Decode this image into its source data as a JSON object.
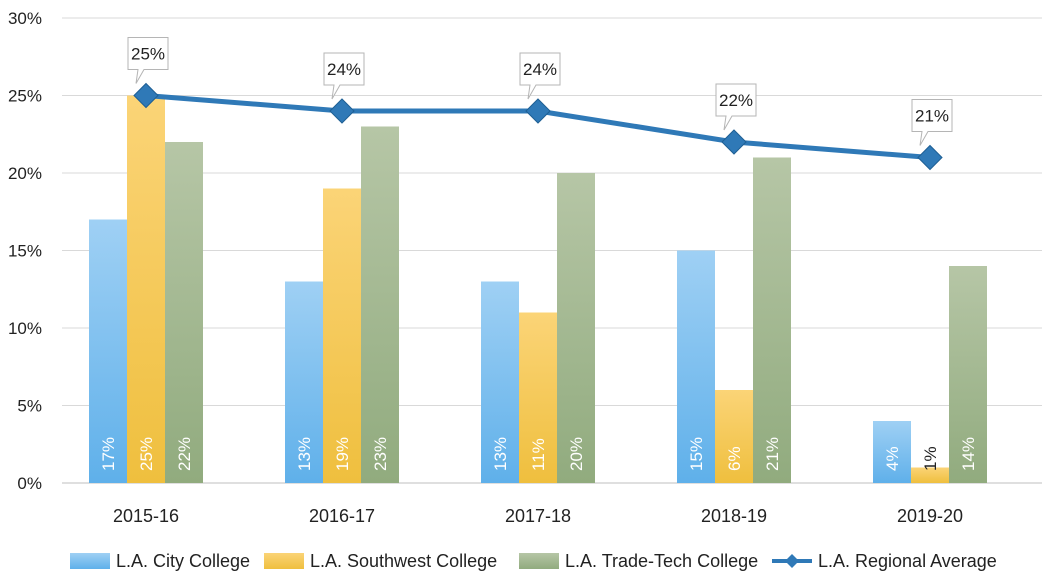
{
  "chart_data": {
    "type": "bar",
    "categories": [
      "2015-16",
      "2016-17",
      "2017-18",
      "2018-19",
      "2019-20"
    ],
    "series": [
      {
        "name": "L.A. City College",
        "kind": "bar",
        "color": "#8ec6ef",
        "values": [
          17,
          13,
          13,
          15,
          4
        ],
        "labels": [
          "17%",
          "13%",
          "13%",
          "15%",
          "4%"
        ]
      },
      {
        "name": "L.A. Southwest College",
        "kind": "bar",
        "color": "#f5c756",
        "values": [
          25,
          19,
          11,
          6,
          1
        ],
        "labels": [
          "25%",
          "19%",
          "11%",
          "6%",
          "1%"
        ]
      },
      {
        "name": "L.A. Trade-Tech College",
        "kind": "bar",
        "color": "#a7bb95",
        "values": [
          22,
          23,
          20,
          21,
          14
        ],
        "labels": [
          "22%",
          "23%",
          "20%",
          "21%",
          "14%"
        ]
      },
      {
        "name": "L.A. Regional Average",
        "kind": "line",
        "color": "#2f79b7",
        "values": [
          25,
          24,
          24,
          22,
          21
        ],
        "labels": [
          "25%",
          "24%",
          "24%",
          "22%",
          "21%"
        ]
      }
    ],
    "ylim": [
      0,
      30
    ],
    "yticks": [
      0,
      5,
      10,
      15,
      20,
      25,
      30
    ],
    "ytick_labels": [
      "0%",
      "5%",
      "10%",
      "15%",
      "20%",
      "25%",
      "30%"
    ],
    "grid": true,
    "legend_position": "bottom",
    "title": "",
    "xlabel": "",
    "ylabel": ""
  }
}
